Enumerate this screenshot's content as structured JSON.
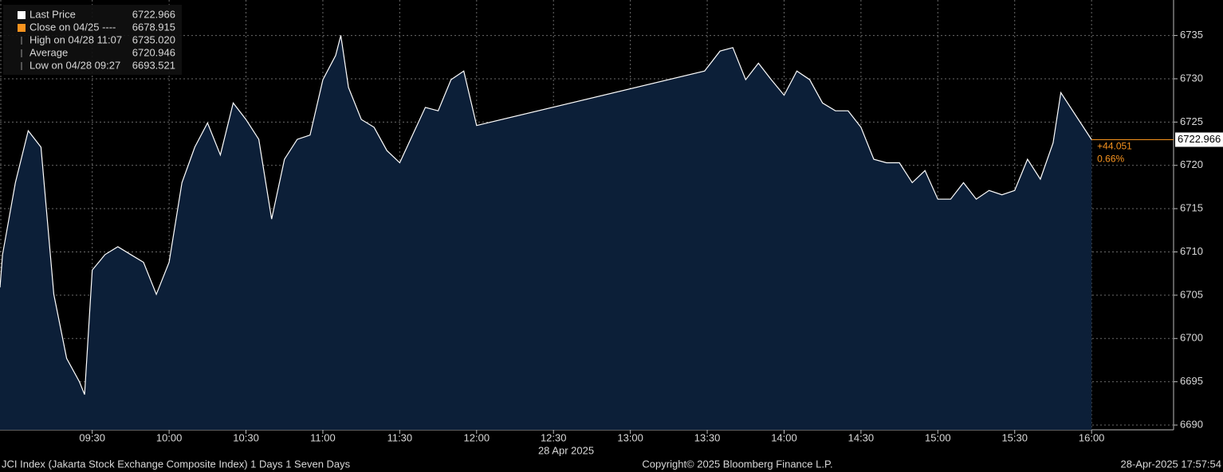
{
  "chart_data": {
    "type": "area",
    "x_label": "28 Apr 2025",
    "x": [
      "08:54",
      "08:55",
      "09:00",
      "09:05",
      "09:10",
      "09:15",
      "09:20",
      "09:25",
      "09:27",
      "09:30",
      "09:35",
      "09:40",
      "09:45",
      "09:50",
      "09:55",
      "10:00",
      "10:05",
      "10:10",
      "10:15",
      "10:20",
      "10:25",
      "10:30",
      "10:35",
      "10:40",
      "10:45",
      "10:50",
      "10:55",
      "11:00",
      "11:05",
      "11:07",
      "11:10",
      "11:15",
      "11:20",
      "11:25",
      "11:30",
      "11:35",
      "11:40",
      "11:45",
      "11:50",
      "11:55",
      "12:00",
      "13:29",
      "13:35",
      "13:40",
      "13:45",
      "13:50",
      "13:55",
      "14:00",
      "14:05",
      "14:10",
      "14:15",
      "14:20",
      "14:25",
      "14:30",
      "14:35",
      "14:40",
      "14:45",
      "14:50",
      "14:55",
      "15:00",
      "15:05",
      "15:10",
      "15:15",
      "15:20",
      "15:25",
      "15:30",
      "15:35",
      "15:40",
      "15:45",
      "15:48",
      "16:00"
    ],
    "series": [
      {
        "name": "Last Price",
        "color": "#ffffff",
        "fill": "#0c1f38",
        "values": [
          6705.9,
          6709.7,
          6718.0,
          6724.0,
          6722.1,
          6705.1,
          6697.7,
          6695.0,
          6693.521,
          6707.9,
          6709.7,
          6710.6,
          6709.7,
          6708.8,
          6705.1,
          6708.8,
          6718.0,
          6722.1,
          6724.9,
          6721.2,
          6727.2,
          6725.3,
          6723.0,
          6713.8,
          6720.7,
          6723.0,
          6723.5,
          6729.9,
          6732.7,
          6735.02,
          6729.0,
          6725.3,
          6724.4,
          6721.7,
          6720.3,
          6723.5,
          6726.7,
          6726.3,
          6729.9,
          6730.9,
          6724.6,
          6730.9,
          6733.2,
          6733.6,
          6729.9,
          6731.8,
          6729.9,
          6728.1,
          6730.9,
          6729.9,
          6727.2,
          6726.3,
          6726.3,
          6724.4,
          6720.7,
          6720.3,
          6720.3,
          6718.0,
          6719.4,
          6716.1,
          6716.1,
          6718.0,
          6716.1,
          6717.1,
          6716.6,
          6717.1,
          6720.7,
          6718.4,
          6722.6,
          6728.4,
          6722.966
        ]
      }
    ],
    "xlim": [
      "08:54",
      "16:32"
    ],
    "xticks": [
      "09:30",
      "10:00",
      "10:30",
      "11:00",
      "11:30",
      "12:00",
      "12:30",
      "13:00",
      "13:30",
      "14:00",
      "14:30",
      "15:00",
      "15:30",
      "16:00"
    ],
    "ylim": [
      6689.45,
      6739.1
    ],
    "yticks": [
      6690,
      6695,
      6700,
      6705,
      6710,
      6715,
      6720,
      6725,
      6730,
      6735
    ],
    "grid": true,
    "legend_items": [
      {
        "label": "Last Price",
        "value": "6722.966",
        "color": "#ffffff"
      },
      {
        "label": "Close on 04/25 ----",
        "value": "6678.915",
        "color": "#f7931e"
      },
      {
        "label": "High on 04/28 11:07",
        "value": "6735.020"
      },
      {
        "label": "Average",
        "value": "6720.946"
      },
      {
        "label": "Low on 04/28 09:27",
        "value": "6693.521"
      }
    ],
    "last_price_label": "6722.966",
    "change": "+44.051",
    "change_pct": "0.66%",
    "footer_left": "JCI Index (Jakarta Stock Exchange Composite Index) 1 Days 1 Seven Days",
    "footer_center": "Copyright© 2025 Bloomberg Finance L.P.",
    "footer_right": "28-Apr-2025 17:57:54"
  }
}
